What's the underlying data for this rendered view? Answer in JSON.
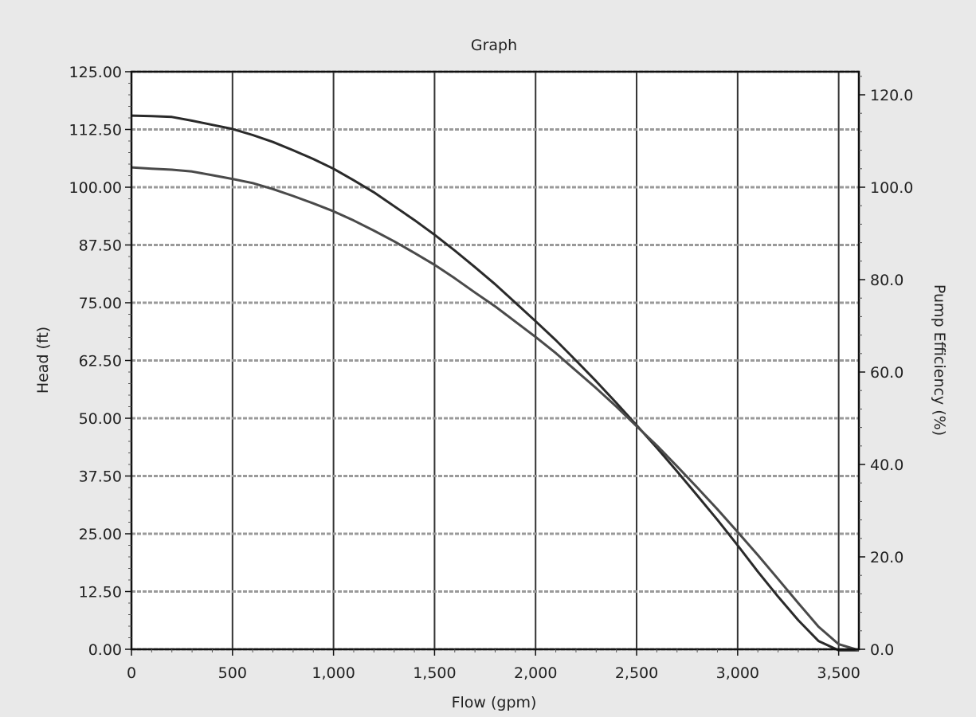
{
  "chart_data": {
    "type": "line",
    "title": "Graph",
    "xlabel": "Flow (gpm)",
    "ylabel": "Head (ft)",
    "y2label": "Pump Efficiency (%)",
    "xlim": [
      0,
      3600
    ],
    "ylim": [
      0,
      125
    ],
    "y2lim": [
      0,
      125
    ],
    "x_ticks": [
      0,
      500,
      1000,
      1500,
      2000,
      2500,
      3000,
      3500
    ],
    "x_tick_labels": [
      "0",
      "500",
      "1,000",
      "1,500",
      "2,000",
      "2,500",
      "3,000",
      "3,500"
    ],
    "y_ticks": [
      0,
      12.5,
      25,
      37.5,
      50,
      62.5,
      75,
      87.5,
      100,
      112.5,
      125
    ],
    "y_tick_labels": [
      "0.00",
      "12.50",
      "25.00",
      "37.50",
      "50.00",
      "62.50",
      "75.00",
      "87.50",
      "100.00",
      "112.50",
      "125.00"
    ],
    "y2_ticks": [
      0,
      20,
      40,
      60,
      80,
      100,
      120
    ],
    "y2_tick_labels": [
      "0.0",
      "20.0",
      "40.0",
      "60.0",
      "80.0",
      "100.0",
      "120.0"
    ],
    "grid": true,
    "legend": "none",
    "series": [
      {
        "color": "#2a2a2a",
        "x": [
          0,
          100,
          200,
          300,
          400,
          500,
          600,
          700,
          800,
          900,
          1000,
          1100,
          1200,
          1300,
          1400,
          1500,
          1600,
          1700,
          1800,
          1900,
          2000,
          2100,
          2200,
          2300,
          2400,
          2500,
          2600,
          2700,
          2800,
          2900,
          3000,
          3100,
          3200,
          3300,
          3400,
          3500,
          3600
        ],
        "values": [
          115.5,
          115.4,
          115.2,
          114.4,
          113.5,
          112.6,
          111.3,
          109.8,
          108.0,
          106.1,
          104.0,
          101.5,
          98.9,
          95.9,
          92.9,
          89.7,
          86.3,
          82.7,
          79.0,
          75.0,
          71.0,
          66.9,
          62.5,
          58.0,
          53.3,
          48.5,
          43.6,
          38.5,
          33.3,
          28.0,
          22.5,
          16.8,
          11.4,
          6.3,
          1.8,
          -1.0,
          -1.5
        ]
      },
      {
        "color": "#4a4a4a",
        "x": [
          0,
          100,
          200,
          300,
          400,
          500,
          600,
          700,
          800,
          900,
          1000,
          1100,
          1200,
          1300,
          1400,
          1500,
          1600,
          1700,
          1800,
          1900,
          2000,
          2100,
          2200,
          2300,
          2400,
          2500,
          2600,
          2700,
          2800,
          2900,
          3000,
          3100,
          3200,
          3300,
          3400,
          3500,
          3600
        ],
        "values": [
          104.3,
          104.0,
          103.8,
          103.4,
          102.6,
          101.8,
          100.9,
          99.6,
          98.1,
          96.5,
          94.8,
          92.8,
          90.6,
          88.3,
          85.8,
          83.2,
          80.3,
          77.2,
          74.2,
          70.9,
          67.6,
          64.1,
          60.3,
          56.5,
          52.5,
          48.3,
          44.1,
          39.6,
          35.0,
          30.3,
          25.4,
          20.4,
          15.2,
          10.0,
          4.9,
          1.1,
          -0.8
        ]
      }
    ]
  }
}
